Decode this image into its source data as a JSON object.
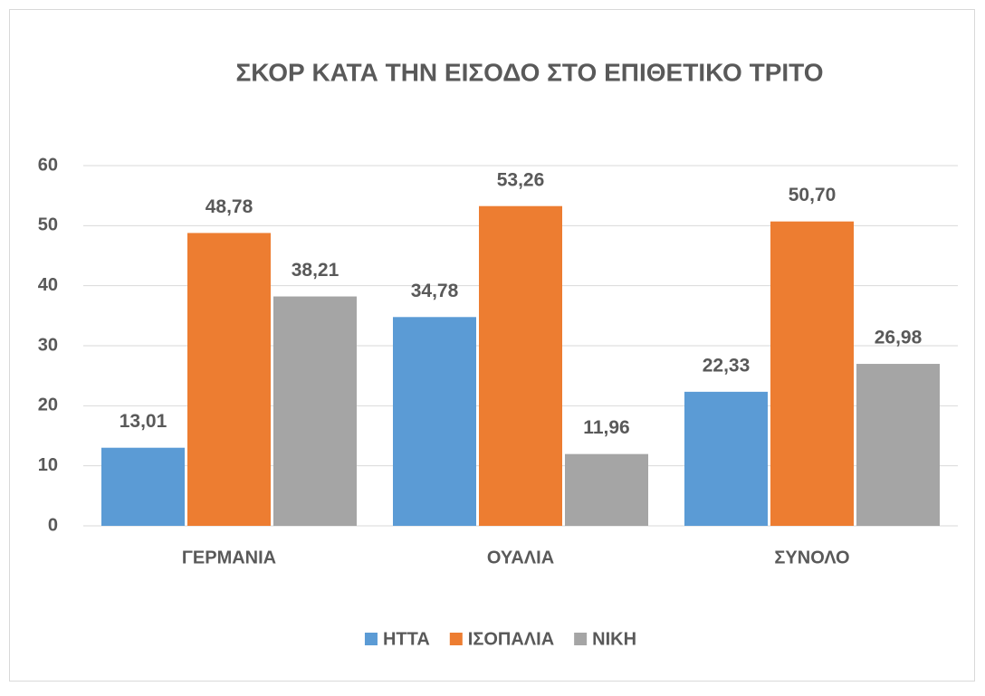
{
  "chart_data": {
    "type": "bar",
    "title": "ΣΚΟΡ ΚΑΤΑ ΤΗΝ ΕΙΣΟΔΟ ΣΤΟ ΕΠΙΘΕΤΙΚΟ ΤΡΙΤΟ",
    "categories": [
      "ΓΕΡΜΑΝΙΑ",
      "ΟΥΑΛΙΑ",
      "ΣΥΝΟΛΟ"
    ],
    "series": [
      {
        "name": "ΗΤΤΑ",
        "color": "#5b9bd5",
        "values": [
          13.01,
          34.78,
          22.33
        ],
        "value_labels": [
          "13,01",
          "34,78",
          "22,33"
        ]
      },
      {
        "name": "ΙΣΟΠΑΛΙΑ",
        "color": "#ed7d31",
        "values": [
          48.78,
          53.26,
          50.7
        ],
        "value_labels": [
          "48,78",
          "53,26",
          "50,70"
        ]
      },
      {
        "name": "ΝΙΚΗ",
        "color": "#a5a5a5",
        "values": [
          38.21,
          11.96,
          26.98
        ],
        "value_labels": [
          "38,21",
          "11,96",
          "26,98"
        ]
      }
    ],
    "ylim": [
      0,
      60
    ],
    "yticks": [
      0,
      10,
      20,
      30,
      40,
      50,
      60
    ],
    "grid": true,
    "legend": "bottom"
  }
}
